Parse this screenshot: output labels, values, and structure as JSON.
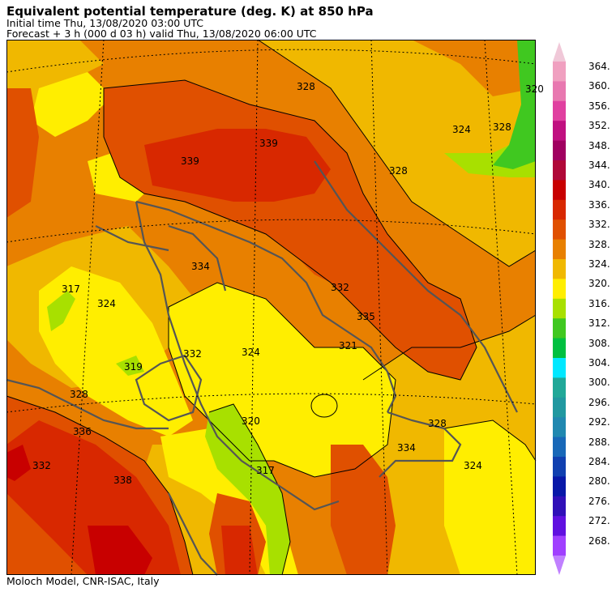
{
  "header": {
    "title": "Equivalent potential temperature (deg. K) at 850 hPa",
    "initial_time": "Initial time  Thu, 13/08/2020  03:00 UTC",
    "forecast": "Forecast +   3 h  (000 d 03 h)  valid Thu, 13/08/2020 06:00 UTC"
  },
  "footer": {
    "credit": "Moloch Model, CNR-ISAC, Italy"
  },
  "colorbar": {
    "levels": [
      {
        "value": "364.",
        "color": "#f0a0c0"
      },
      {
        "value": "360.",
        "color": "#e878b0"
      },
      {
        "value": "356.",
        "color": "#e040a0"
      },
      {
        "value": "352.",
        "color": "#c01080"
      },
      {
        "value": "348.",
        "color": "#a00060"
      },
      {
        "value": "344.",
        "color": "#b00838"
      },
      {
        "value": "340.",
        "color": "#c80000"
      },
      {
        "value": "336.",
        "color": "#d82800"
      },
      {
        "value": "332.",
        "color": "#e05000"
      },
      {
        "value": "328.",
        "color": "#e88000"
      },
      {
        "value": "324.",
        "color": "#f0b800"
      },
      {
        "value": "320.",
        "color": "#ffee00"
      },
      {
        "value": "316.",
        "color": "#a8e000"
      },
      {
        "value": "312.",
        "color": "#40c820"
      },
      {
        "value": "308.",
        "color": "#00c040"
      },
      {
        "value": "304.",
        "color": "#00e8ff"
      },
      {
        "value": "300.",
        "color": "#20a898"
      },
      {
        "value": "296.",
        "color": "#2098a0"
      },
      {
        "value": "292.",
        "color": "#2088b0"
      },
      {
        "value": "288.",
        "color": "#1868b8"
      },
      {
        "value": "284.",
        "color": "#1040b0"
      },
      {
        "value": "280.",
        "color": "#0818a8"
      },
      {
        "value": "276.",
        "color": "#3010b8"
      },
      {
        "value": "272.",
        "color": "#6010e0"
      },
      {
        "value": "268.",
        "color": "#a040ff"
      }
    ],
    "top_arrow_color": "#f0c8d8",
    "bottom_arrow_color": "#c080ff"
  },
  "contour_labels": [
    "339",
    "339",
    "328",
    "328",
    "334",
    "332",
    "335",
    "321",
    "317",
    "324",
    "332",
    "328",
    "319",
    "324",
    "320",
    "317",
    "336",
    "332",
    "338",
    "334",
    "328",
    "324",
    "324",
    "320",
    "328"
  ]
}
